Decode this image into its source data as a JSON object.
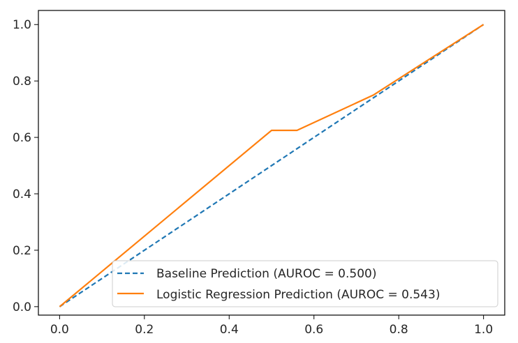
{
  "chart_data": {
    "type": "line",
    "title": "",
    "xlabel": "",
    "ylabel": "",
    "xlim": [
      -0.05,
      1.05
    ],
    "ylim": [
      -0.03,
      1.05
    ],
    "grid": false,
    "legend_position": "bottom-right",
    "x_ticks": [
      "0.0",
      "0.2",
      "0.4",
      "0.6",
      "0.8",
      "1.0"
    ],
    "y_ticks": [
      "0.0",
      "0.2",
      "0.4",
      "0.6",
      "0.8",
      "1.0"
    ],
    "series": [
      {
        "name": "Baseline Prediction (AUROC = 0.500)",
        "style": "dashed",
        "color": "#1f77b4",
        "x": [
          0.0,
          1.0
        ],
        "y": [
          0.0,
          1.0
        ]
      },
      {
        "name": "Logistic Regression Prediction (AUROC = 0.543)",
        "style": "solid",
        "color": "#ff7f0e",
        "x": [
          0.0,
          0.5,
          0.56,
          0.74,
          1.0
        ],
        "y": [
          0.0,
          0.625,
          0.625,
          0.75,
          1.0
        ]
      }
    ]
  }
}
